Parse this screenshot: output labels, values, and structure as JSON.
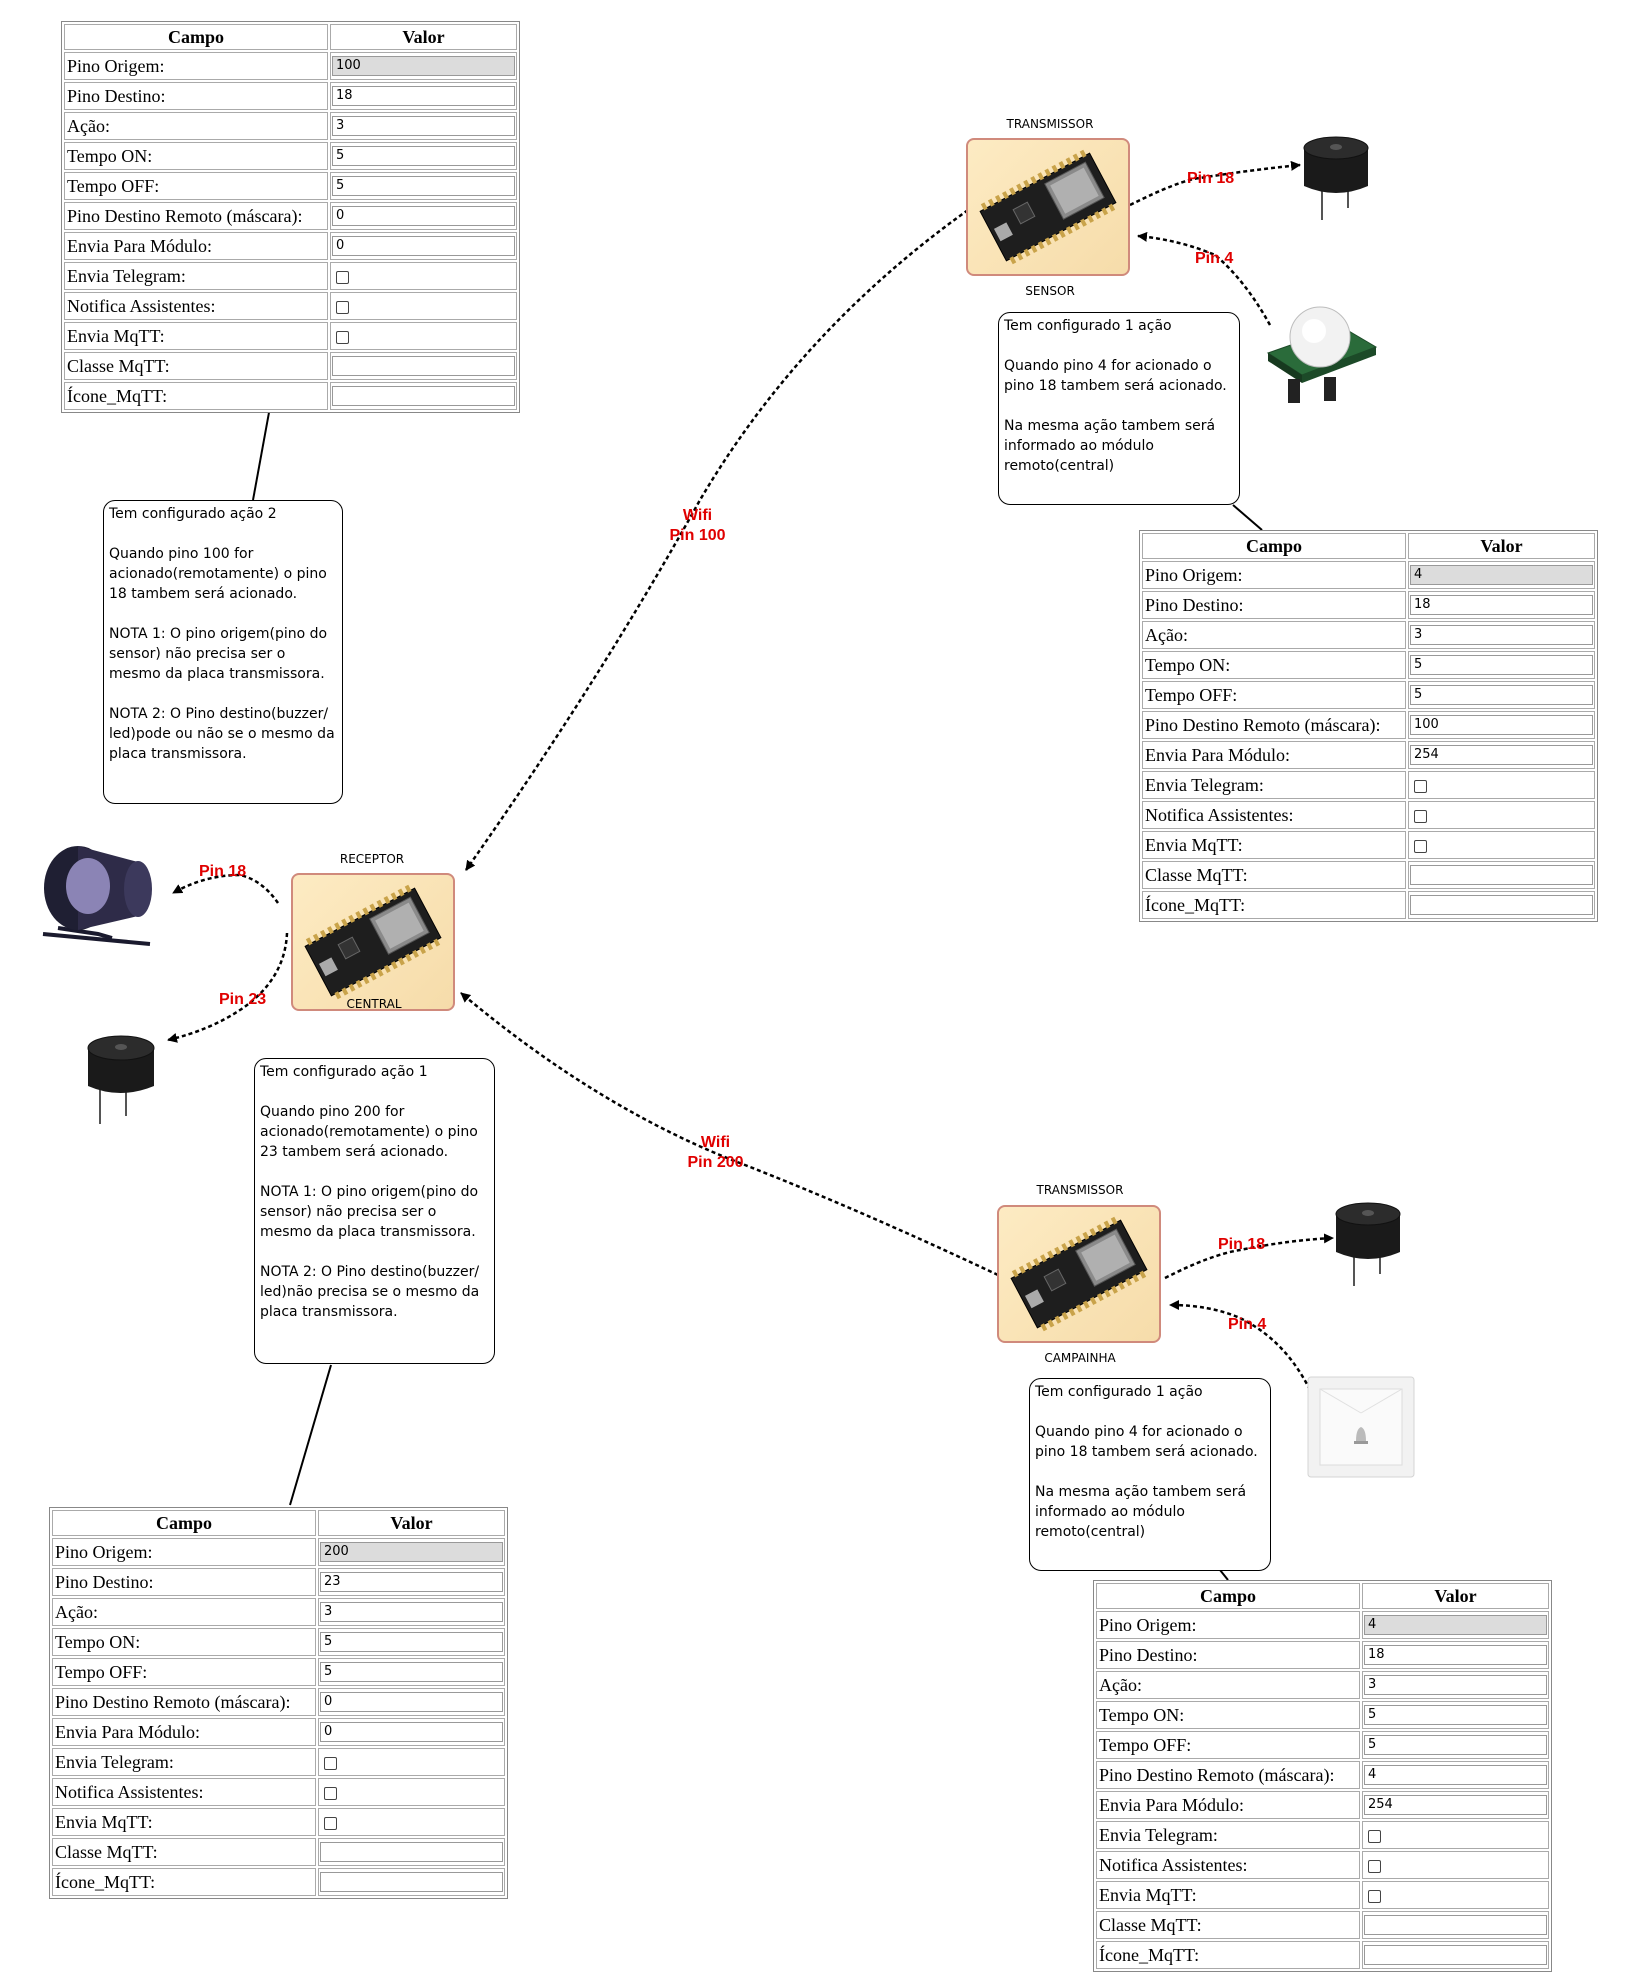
{
  "table_header": {
    "field": "Campo",
    "value": "Valor"
  },
  "config_tables": [
    {
      "rows": [
        {
          "field": "Pino Origem:",
          "value": "100",
          "type": "readonly"
        },
        {
          "field": "Pino Destino:",
          "value": "18",
          "type": "text"
        },
        {
          "field": "Ação:",
          "value": "3",
          "type": "text"
        },
        {
          "field": "Tempo ON:",
          "value": "5",
          "type": "text"
        },
        {
          "field": "Tempo OFF:",
          "value": "5",
          "type": "text"
        },
        {
          "field": "Pino Destino Remoto (máscara):",
          "value": "0",
          "type": "text"
        },
        {
          "field": "Envia Para Módulo:",
          "value": "0",
          "type": "text"
        },
        {
          "field": "Envia Telegram:",
          "value": "",
          "type": "checkbox"
        },
        {
          "field": "Notifica Assistentes:",
          "value": "",
          "type": "checkbox"
        },
        {
          "field": "Envia MqTT:",
          "value": "",
          "type": "checkbox"
        },
        {
          "field": "Classe MqTT:",
          "value": "",
          "type": "text"
        },
        {
          "field": "Ícone_MqTT:",
          "value": "",
          "type": "text"
        }
      ]
    },
    {
      "rows": [
        {
          "field": "Pino Origem:",
          "value": "4",
          "type": "readonly"
        },
        {
          "field": "Pino Destino:",
          "value": "18",
          "type": "text"
        },
        {
          "field": "Ação:",
          "value": "3",
          "type": "text"
        },
        {
          "field": "Tempo ON:",
          "value": "5",
          "type": "text"
        },
        {
          "field": "Tempo OFF:",
          "value": "5",
          "type": "text"
        },
        {
          "field": "Pino Destino Remoto (máscara):",
          "value": "100",
          "type": "text"
        },
        {
          "field": "Envia Para Módulo:",
          "value": "254",
          "type": "text"
        },
        {
          "field": "Envia Telegram:",
          "value": "",
          "type": "checkbox"
        },
        {
          "field": "Notifica Assistentes:",
          "value": "",
          "type": "checkbox"
        },
        {
          "field": "Envia MqTT:",
          "value": "",
          "type": "checkbox"
        },
        {
          "field": "Classe MqTT:",
          "value": "",
          "type": "text"
        },
        {
          "field": "Ícone_MqTT:",
          "value": "",
          "type": "text"
        }
      ]
    },
    {
      "rows": [
        {
          "field": "Pino Origem:",
          "value": "200",
          "type": "readonly"
        },
        {
          "field": "Pino Destino:",
          "value": "23",
          "type": "text"
        },
        {
          "field": "Ação:",
          "value": "3",
          "type": "text"
        },
        {
          "field": "Tempo ON:",
          "value": "5",
          "type": "text"
        },
        {
          "field": "Tempo OFF:",
          "value": "5",
          "type": "text"
        },
        {
          "field": "Pino Destino Remoto (máscara):",
          "value": "0",
          "type": "text"
        },
        {
          "field": "Envia Para Módulo:",
          "value": "0",
          "type": "text"
        },
        {
          "field": "Envia Telegram:",
          "value": "",
          "type": "checkbox"
        },
        {
          "field": "Notifica Assistentes:",
          "value": "",
          "type": "checkbox"
        },
        {
          "field": "Envia MqTT:",
          "value": "",
          "type": "checkbox"
        },
        {
          "field": "Classe MqTT:",
          "value": "",
          "type": "text"
        },
        {
          "field": "Ícone_MqTT:",
          "value": "",
          "type": "text"
        }
      ]
    },
    {
      "rows": [
        {
          "field": "Pino Origem:",
          "value": "4",
          "type": "readonly"
        },
        {
          "field": "Pino Destino:",
          "value": "18",
          "type": "text"
        },
        {
          "field": "Ação:",
          "value": "3",
          "type": "text"
        },
        {
          "field": "Tempo ON:",
          "value": "5",
          "type": "text"
        },
        {
          "field": "Tempo OFF:",
          "value": "5",
          "type": "text"
        },
        {
          "field": "Pino Destino Remoto (máscara):",
          "value": "4",
          "type": "text"
        },
        {
          "field": "Envia Para Módulo:",
          "value": "254",
          "type": "text"
        },
        {
          "field": "Envia Telegram:",
          "value": "",
          "type": "checkbox"
        },
        {
          "field": "Notifica Assistentes:",
          "value": "",
          "type": "checkbox"
        },
        {
          "field": "Envia MqTT:",
          "value": "",
          "type": "checkbox"
        },
        {
          "field": "Classe MqTT:",
          "value": "",
          "type": "text"
        },
        {
          "field": "Ícone_MqTT:",
          "value": "",
          "type": "text"
        }
      ]
    }
  ],
  "notes": {
    "action2": [
      "Tem configurado ação 2",
      "Quando pino 100 for acionado(remotamente) o pino 18 tambem será acionado.",
      "NOTA 1: O pino origem(pino do sensor) não precisa ser o mesmo da placa transmissora.",
      "NOTA 2: O Pino destino(buzzer/ led)pode ou não se o mesmo da placa transmissora."
    ],
    "action1": [
      "Tem configurado ação 1",
      "Quando pino 200 for acionado(remotamente) o pino 23 tambem será acionado.",
      "NOTA 1: O pino origem(pino do sensor) não precisa ser o mesmo da placa transmissora.",
      "NOTA 2: O Pino destino(buzzer/ led)não precisa se o mesmo da placa transmissora."
    ],
    "sensor": [
      "Tem configurado 1 ação",
      "Quando pino 4 for acionado o pino 18 tambem será acionado.",
      "Na mesma ação tambem será informado ao módulo remoto(central)"
    ],
    "campainha": [
      "Tem configurado 1 ação",
      "Quando pino 4 for acionado o pino 18 tambem será acionado.",
      "Na mesma ação tambem será informado ao módulo remoto(central)"
    ]
  },
  "boards": {
    "sensor_top": "TRANSMISSOR",
    "sensor_bottom": "SENSOR",
    "central_top": "RECEPTOR",
    "central_bottom": "CENTRAL",
    "campainha_top": "TRANSMISSOR",
    "campainha_bottom": "CAMPAINHA"
  },
  "pins": {
    "sensor_out": "Pin 18",
    "sensor_in": "Pin 4",
    "central_siren": "Pin 18",
    "central_buzzer": "Pin 23",
    "campainha_out": "Pin 18",
    "campainha_in": "Pin 4"
  },
  "links": {
    "wifi_top": [
      "Wifi",
      "Pin 100"
    ],
    "wifi_bottom": [
      "Wifi",
      "Pin 200"
    ]
  },
  "icons": [
    "esp32-board-icon",
    "buzzer-icon",
    "pir-sensor-icon",
    "siren-icon",
    "doorbell-button-icon"
  ]
}
